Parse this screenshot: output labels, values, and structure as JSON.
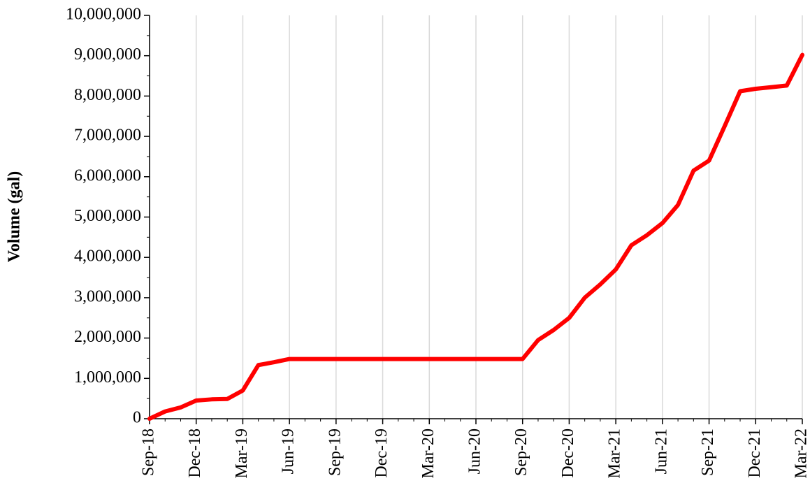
{
  "chart_data": {
    "type": "line",
    "ylabel": "Volume (gal)",
    "x": [
      "2018-09",
      "2018-10",
      "2018-11",
      "2018-12",
      "2019-01",
      "2019-02",
      "2019-03",
      "2019-04",
      "2019-05",
      "2019-06",
      "2019-07",
      "2019-08",
      "2019-09",
      "2019-10",
      "2019-11",
      "2019-12",
      "2020-01",
      "2020-02",
      "2020-03",
      "2020-04",
      "2020-05",
      "2020-06",
      "2020-07",
      "2020-08",
      "2020-09",
      "2020-10",
      "2020-11",
      "2020-12",
      "2021-01",
      "2021-02",
      "2021-03",
      "2021-04",
      "2021-05",
      "2021-06",
      "2021-07",
      "2021-08",
      "2021-09",
      "2021-10",
      "2021-11",
      "2021-12",
      "2022-01",
      "2022-02",
      "2022-03"
    ],
    "series": [
      {
        "name": "Volume",
        "color": "#ff0000",
        "values": [
          0,
          180000,
          280000,
          450000,
          480000,
          490000,
          700000,
          1330000,
          1400000,
          1480000,
          1480000,
          1480000,
          1480000,
          1480000,
          1480000,
          1480000,
          1480000,
          1480000,
          1480000,
          1480000,
          1480000,
          1480000,
          1480000,
          1480000,
          1480000,
          1950000,
          2200000,
          2500000,
          3000000,
          3330000,
          3700000,
          4300000,
          4550000,
          4850000,
          5300000,
          6150000,
          6400000,
          7250000,
          8120000,
          8180000,
          8220000,
          8260000,
          9020000
        ]
      }
    ],
    "xlim": [
      "2018-09",
      "2022-03"
    ],
    "xticks": [
      {
        "value": "2018-09",
        "label": "Sep-18"
      },
      {
        "value": "2018-12",
        "label": "Dec-18"
      },
      {
        "value": "2019-03",
        "label": "Mar-19"
      },
      {
        "value": "2019-06",
        "label": "Jun-19"
      },
      {
        "value": "2019-09",
        "label": "Sep-19"
      },
      {
        "value": "2019-12",
        "label": "Dec-19"
      },
      {
        "value": "2020-03",
        "label": "Mar-20"
      },
      {
        "value": "2020-06",
        "label": "Jun-20"
      },
      {
        "value": "2020-09",
        "label": "Sep-20"
      },
      {
        "value": "2020-12",
        "label": "Dec-20"
      },
      {
        "value": "2021-03",
        "label": "Mar-21"
      },
      {
        "value": "2021-06",
        "label": "Jun-21"
      },
      {
        "value": "2021-09",
        "label": "Sep-21"
      },
      {
        "value": "2021-12",
        "label": "Dec-21"
      },
      {
        "value": "2022-03",
        "label": "Mar-22"
      }
    ],
    "ylim": [
      0,
      10000000
    ],
    "yticks": [
      0,
      {
        "value": 1000000,
        "label": "1,000,000"
      },
      {
        "value": 2000000,
        "label": "2,000,000"
      },
      {
        "value": 3000000,
        "label": "3,000,000"
      },
      {
        "value": 4000000,
        "label": "4,000,000"
      },
      {
        "value": 5000000,
        "label": "5,000,000"
      },
      {
        "value": 6000000,
        "label": "6,000,000"
      },
      {
        "value": 7000000,
        "label": "7,000,000"
      },
      {
        "value": 8000000,
        "label": "8,000,000"
      },
      {
        "value": 9000000,
        "label": "9,000,000"
      },
      {
        "value": 10000000,
        "label": "10,000,000"
      }
    ],
    "grid": "x"
  }
}
